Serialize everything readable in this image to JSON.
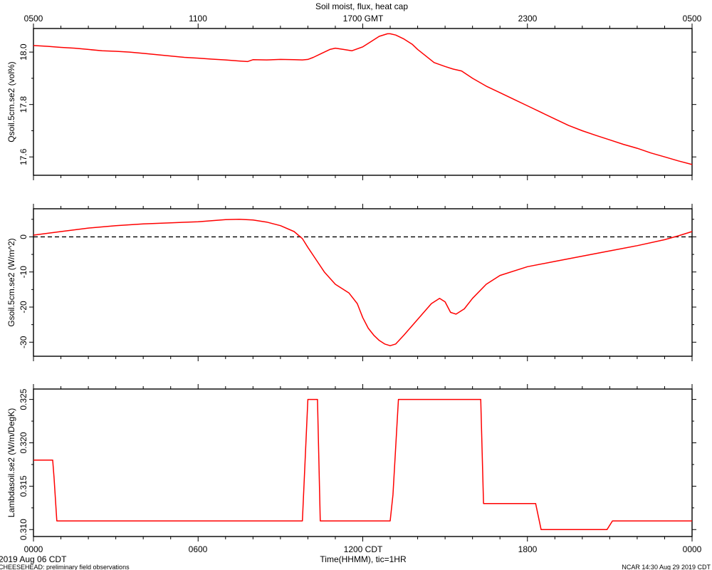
{
  "figure": {
    "title": "Soil moist, flux, heat cap",
    "top_tick_labels": [
      "0500",
      "1100",
      "1700 GMT",
      "2300",
      "0500"
    ],
    "bottom_tick_labels": [
      "0000",
      "0600",
      "1200 CDT",
      "1800",
      "0000"
    ],
    "xlabel": "Time(HHMM), tic=1HR",
    "date_label": "2019 Aug 06 CDT",
    "footer_left": "CHEESEHEAD: preliminary field observations",
    "footer_right": "NCAR 14:30 Aug 29 2019 CDT"
  },
  "colors": {
    "series": "#ff0000",
    "axes": "#000000"
  },
  "chart_data": [
    {
      "type": "line",
      "ylabel": "Qsoil.5cm.se2 (vol%)",
      "xlim": [
        0,
        24
      ],
      "ylim": [
        17.53,
        18.09
      ],
      "yticks": [
        17.6,
        17.8,
        18.0
      ],
      "ytick_labels": [
        "17.6",
        "17.8",
        "18.0"
      ],
      "grid": false,
      "x": [
        0,
        0.5,
        1,
        1.5,
        2,
        2.5,
        3,
        3.5,
        4,
        4.5,
        5,
        5.5,
        6,
        6.5,
        7,
        7.5,
        7.8,
        8,
        8.5,
        9,
        9.5,
        9.8,
        10,
        10.2,
        10.5,
        10.8,
        11,
        11.3,
        11.6,
        12,
        12.3,
        12.6,
        12.9,
        13,
        13.2,
        13.5,
        13.8,
        14,
        14.3,
        14.6,
        15,
        15.3,
        15.6,
        16,
        16.5,
        17,
        17.5,
        18,
        18.5,
        19,
        19.5,
        20,
        20.5,
        21,
        21.5,
        22,
        22.5,
        23,
        23.5,
        24
      ],
      "values": [
        18.025,
        18.022,
        18.018,
        18.015,
        18.01,
        18.005,
        18.003,
        18.0,
        17.995,
        17.99,
        17.985,
        17.98,
        17.977,
        17.973,
        17.97,
        17.966,
        17.964,
        17.971,
        17.97,
        17.972,
        17.971,
        17.97,
        17.972,
        17.98,
        17.995,
        18.01,
        18.015,
        18.01,
        18.005,
        18.02,
        18.04,
        18.06,
        18.07,
        18.07,
        18.065,
        18.05,
        18.03,
        18.01,
        17.985,
        17.96,
        17.945,
        17.935,
        17.928,
        17.9,
        17.87,
        17.845,
        17.82,
        17.795,
        17.77,
        17.745,
        17.72,
        17.7,
        17.682,
        17.665,
        17.648,
        17.633,
        17.615,
        17.6,
        17.585,
        17.571
      ]
    },
    {
      "type": "line",
      "ylabel": "Gsoil.5cm.se2 (W/m^2)",
      "xlim": [
        0,
        24
      ],
      "ylim": [
        -34,
        8
      ],
      "yticks": [
        -30,
        -20,
        -10,
        0
      ],
      "ytick_labels": [
        "-30",
        "-20",
        "-10",
        "0"
      ],
      "reference_line": {
        "y": 0,
        "style": "dashed"
      },
      "grid": false,
      "x": [
        0,
        1,
        2,
        3,
        4,
        5,
        6,
        6.5,
        7,
        7.5,
        8,
        8.5,
        9,
        9.5,
        9.8,
        10,
        10.3,
        10.6,
        11,
        11.5,
        11.8,
        12,
        12.2,
        12.4,
        12.6,
        12.8,
        13,
        13.2,
        13.5,
        14,
        14.5,
        14.8,
        15,
        15.2,
        15.4,
        15.7,
        16,
        16.5,
        17,
        18,
        19,
        20,
        21,
        22,
        23,
        23.5,
        24
      ],
      "values": [
        0.5,
        1.5,
        2.5,
        3.2,
        3.7,
        4.0,
        4.3,
        4.6,
        4.9,
        5.0,
        4.8,
        4.2,
        3.2,
        1.5,
        -0.5,
        -3.0,
        -6.5,
        -10.0,
        -13.5,
        -16.0,
        -19.0,
        -23.0,
        -26.0,
        -28.0,
        -29.5,
        -30.5,
        -31.0,
        -30.5,
        -28.0,
        -23.5,
        -19.0,
        -17.5,
        -18.5,
        -21.5,
        -22.0,
        -20.5,
        -17.5,
        -13.5,
        -11.0,
        -8.5,
        -7.0,
        -5.5,
        -4.0,
        -2.5,
        -0.8,
        0.3,
        1.5
      ]
    },
    {
      "type": "line",
      "ylabel": "Lambdasoil.se2 (W/m/DegK)",
      "xlim": [
        0,
        24
      ],
      "ylim": [
        0.3092,
        0.3262
      ],
      "yticks": [
        0.31,
        0.315,
        0.32,
        0.325
      ],
      "ytick_labels": [
        "0.310",
        "0.315",
        "0.320",
        "0.325"
      ],
      "grid": false,
      "x": [
        0,
        0.7,
        0.75,
        0.85,
        9.8,
        10.0,
        10.35,
        10.45,
        13.0,
        13.1,
        13.3,
        16.3,
        16.4,
        18.3,
        18.5,
        20.9,
        21.1,
        24
      ],
      "values": [
        0.318,
        0.318,
        0.316,
        0.311,
        0.311,
        0.325,
        0.325,
        0.311,
        0.311,
        0.314,
        0.325,
        0.325,
        0.313,
        0.313,
        0.31,
        0.31,
        0.311,
        0.311
      ]
    }
  ]
}
